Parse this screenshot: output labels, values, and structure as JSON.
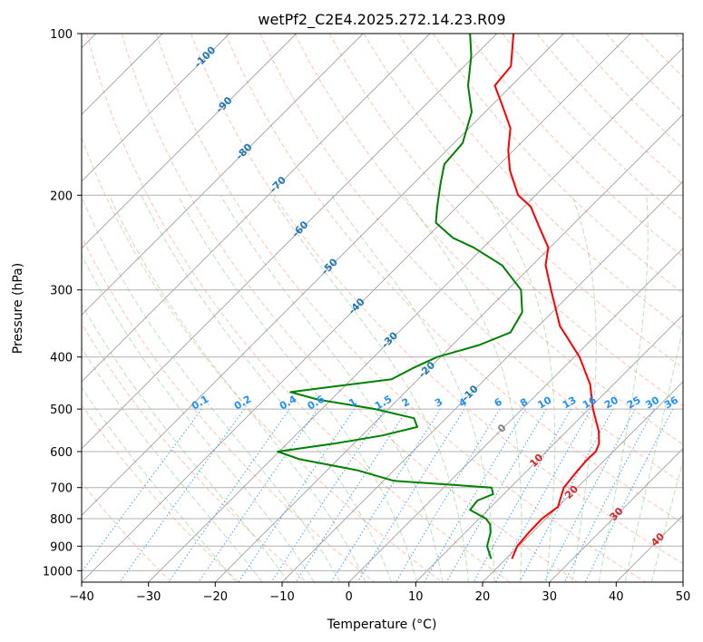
{
  "chart_data": {
    "type": "skew-t",
    "title": "wetPf2_C2E4.2025.272.14.23.R09",
    "xlabel": "Temperature (°C)",
    "ylabel": "Pressure (hPa)",
    "xlim": [
      -40,
      50
    ],
    "ylim": [
      1050,
      100
    ],
    "x_ticks": [
      -40,
      -30,
      -20,
      -10,
      0,
      10,
      20,
      30,
      40,
      50
    ],
    "x_tick_labels": [
      "−40",
      "−30",
      "−20",
      "−10",
      "0",
      "10",
      "20",
      "30",
      "40",
      "50"
    ],
    "y_ticks": [
      100,
      200,
      300,
      400,
      500,
      600,
      700,
      800,
      900,
      1000
    ],
    "y_tick_labels": [
      "100",
      "200",
      "300",
      "400",
      "500",
      "600",
      "700",
      "800",
      "900",
      "1000"
    ],
    "grid": true,
    "colors": {
      "temperature": "#ff0000",
      "dewpoint": "#008000",
      "isotherm": "#808080",
      "dry_adiabat": "#ff7f50",
      "moist_adiabat": "#3cb043",
      "mixing_ratio": "#1f8fff",
      "isotherm_label": "#1f77b4",
      "dry_adiabat_label": "#d62728",
      "zero_label": "#808080"
    },
    "series": [
      {
        "name": "Temperature",
        "points": [
          {
            "p": 950,
            "t": 20.9
          },
          {
            "p": 900,
            "t": 19.8
          },
          {
            "p": 850,
            "t": 19.5
          },
          {
            "p": 800,
            "t": 19.4
          },
          {
            "p": 760,
            "t": 20.0
          },
          {
            "p": 730,
            "t": 19.0
          },
          {
            "p": 700,
            "t": 18.0
          },
          {
            "p": 650,
            "t": 17.5
          },
          {
            "p": 620,
            "t": 17.3
          },
          {
            "p": 600,
            "t": 17.4
          },
          {
            "p": 580,
            "t": 16.7
          },
          {
            "p": 550,
            "t": 14.8
          },
          {
            "p": 500,
            "t": 10.6
          },
          {
            "p": 450,
            "t": 6.5
          },
          {
            "p": 400,
            "t": 0.8
          },
          {
            "p": 350,
            "t": -6.8
          },
          {
            "p": 300,
            "t": -13.5
          },
          {
            "p": 270,
            "t": -18.0
          },
          {
            "p": 250,
            "t": -20.3
          },
          {
            "p": 230,
            "t": -24.5
          },
          {
            "p": 210,
            "t": -29.0
          },
          {
            "p": 200,
            "t": -32.6
          },
          {
            "p": 180,
            "t": -37.5
          },
          {
            "p": 165,
            "t": -40.8
          },
          {
            "p": 150,
            "t": -43.8
          },
          {
            "p": 135,
            "t": -48.8
          },
          {
            "p": 125,
            "t": -52.5
          },
          {
            "p": 115,
            "t": -53.0
          },
          {
            "p": 100,
            "t": -57.5
          }
        ]
      },
      {
        "name": "Dewpoint",
        "points": [
          {
            "p": 950,
            "t": 17.8
          },
          {
            "p": 920,
            "t": 16.3
          },
          {
            "p": 900,
            "t": 15.3
          },
          {
            "p": 850,
            "t": 13.8
          },
          {
            "p": 820,
            "t": 12.5
          },
          {
            "p": 800,
            "t": 11.0
          },
          {
            "p": 770,
            "t": 7.3
          },
          {
            "p": 740,
            "t": 7.0
          },
          {
            "p": 720,
            "t": 8.4
          },
          {
            "p": 700,
            "t": 7.2
          },
          {
            "p": 680,
            "t": -8.5
          },
          {
            "p": 650,
            "t": -15.5
          },
          {
            "p": 620,
            "t": -25.8
          },
          {
            "p": 600,
            "t": -30.2
          },
          {
            "p": 580,
            "t": -23.0
          },
          {
            "p": 560,
            "t": -17.0
          },
          {
            "p": 540,
            "t": -13.0
          },
          {
            "p": 520,
            "t": -14.8
          },
          {
            "p": 500,
            "t": -22.0
          },
          {
            "p": 480,
            "t": -32.0
          },
          {
            "p": 465,
            "t": -37.2
          },
          {
            "p": 455,
            "t": -32.0
          },
          {
            "p": 440,
            "t": -24.0
          },
          {
            "p": 420,
            "t": -22.5
          },
          {
            "p": 400,
            "t": -20.5
          },
          {
            "p": 380,
            "t": -16.0
          },
          {
            "p": 360,
            "t": -13.2
          },
          {
            "p": 330,
            "t": -14.5
          },
          {
            "p": 300,
            "t": -18.0
          },
          {
            "p": 270,
            "t": -24.5
          },
          {
            "p": 250,
            "t": -31.5
          },
          {
            "p": 240,
            "t": -36.0
          },
          {
            "p": 225,
            "t": -40.8
          },
          {
            "p": 210,
            "t": -43.0
          },
          {
            "p": 190,
            "t": -46.0
          },
          {
            "p": 175,
            "t": -48.3
          },
          {
            "p": 160,
            "t": -48.7
          },
          {
            "p": 140,
            "t": -52.0
          },
          {
            "p": 125,
            "t": -56.5
          },
          {
            "p": 110,
            "t": -60.5
          },
          {
            "p": 100,
            "t": -64.0
          }
        ]
      }
    ],
    "isotherm_labels": [
      {
        "text": "-100",
        "p": 110,
        "t": -100
      },
      {
        "text": "-90",
        "p": 135,
        "t": -90
      },
      {
        "text": "-80",
        "p": 165,
        "t": -80
      },
      {
        "text": "-70",
        "p": 190,
        "t": -70
      },
      {
        "text": "-60",
        "p": 230,
        "t": -60
      },
      {
        "text": "-50",
        "p": 270,
        "t": -50
      },
      {
        "text": "-40",
        "p": 320,
        "t": -40
      },
      {
        "text": "-30",
        "p": 370,
        "t": -30
      },
      {
        "text": "-20",
        "p": 420,
        "t": -20
      },
      {
        "text": "-10",
        "p": 465,
        "t": -10
      }
    ],
    "zero_label": {
      "text": "0",
      "p": 540,
      "t": 0
    },
    "dry_adiabat_labels": [
      {
        "text": "10",
        "p": 620,
        "t": 10
      },
      {
        "text": "20",
        "p": 710,
        "t": 20
      },
      {
        "text": "30",
        "p": 780,
        "t": 30
      },
      {
        "text": "40",
        "p": 870,
        "t": 40
      }
    ],
    "mixing_ratio_values": [
      0.1,
      0.2,
      0.4,
      0.6,
      1,
      1.5,
      2,
      3,
      4,
      6,
      8,
      10,
      13,
      16,
      20,
      25,
      30,
      36
    ],
    "mixing_ratio_labels": [
      "0.1",
      "0.2",
      "0.4",
      "0.6",
      "1",
      "1.5",
      "2",
      "3",
      "4",
      "6",
      "8",
      "10",
      "13",
      "16",
      "20",
      "25",
      "30",
      "36"
    ],
    "mixing_ratio_label_pressure": 500
  }
}
